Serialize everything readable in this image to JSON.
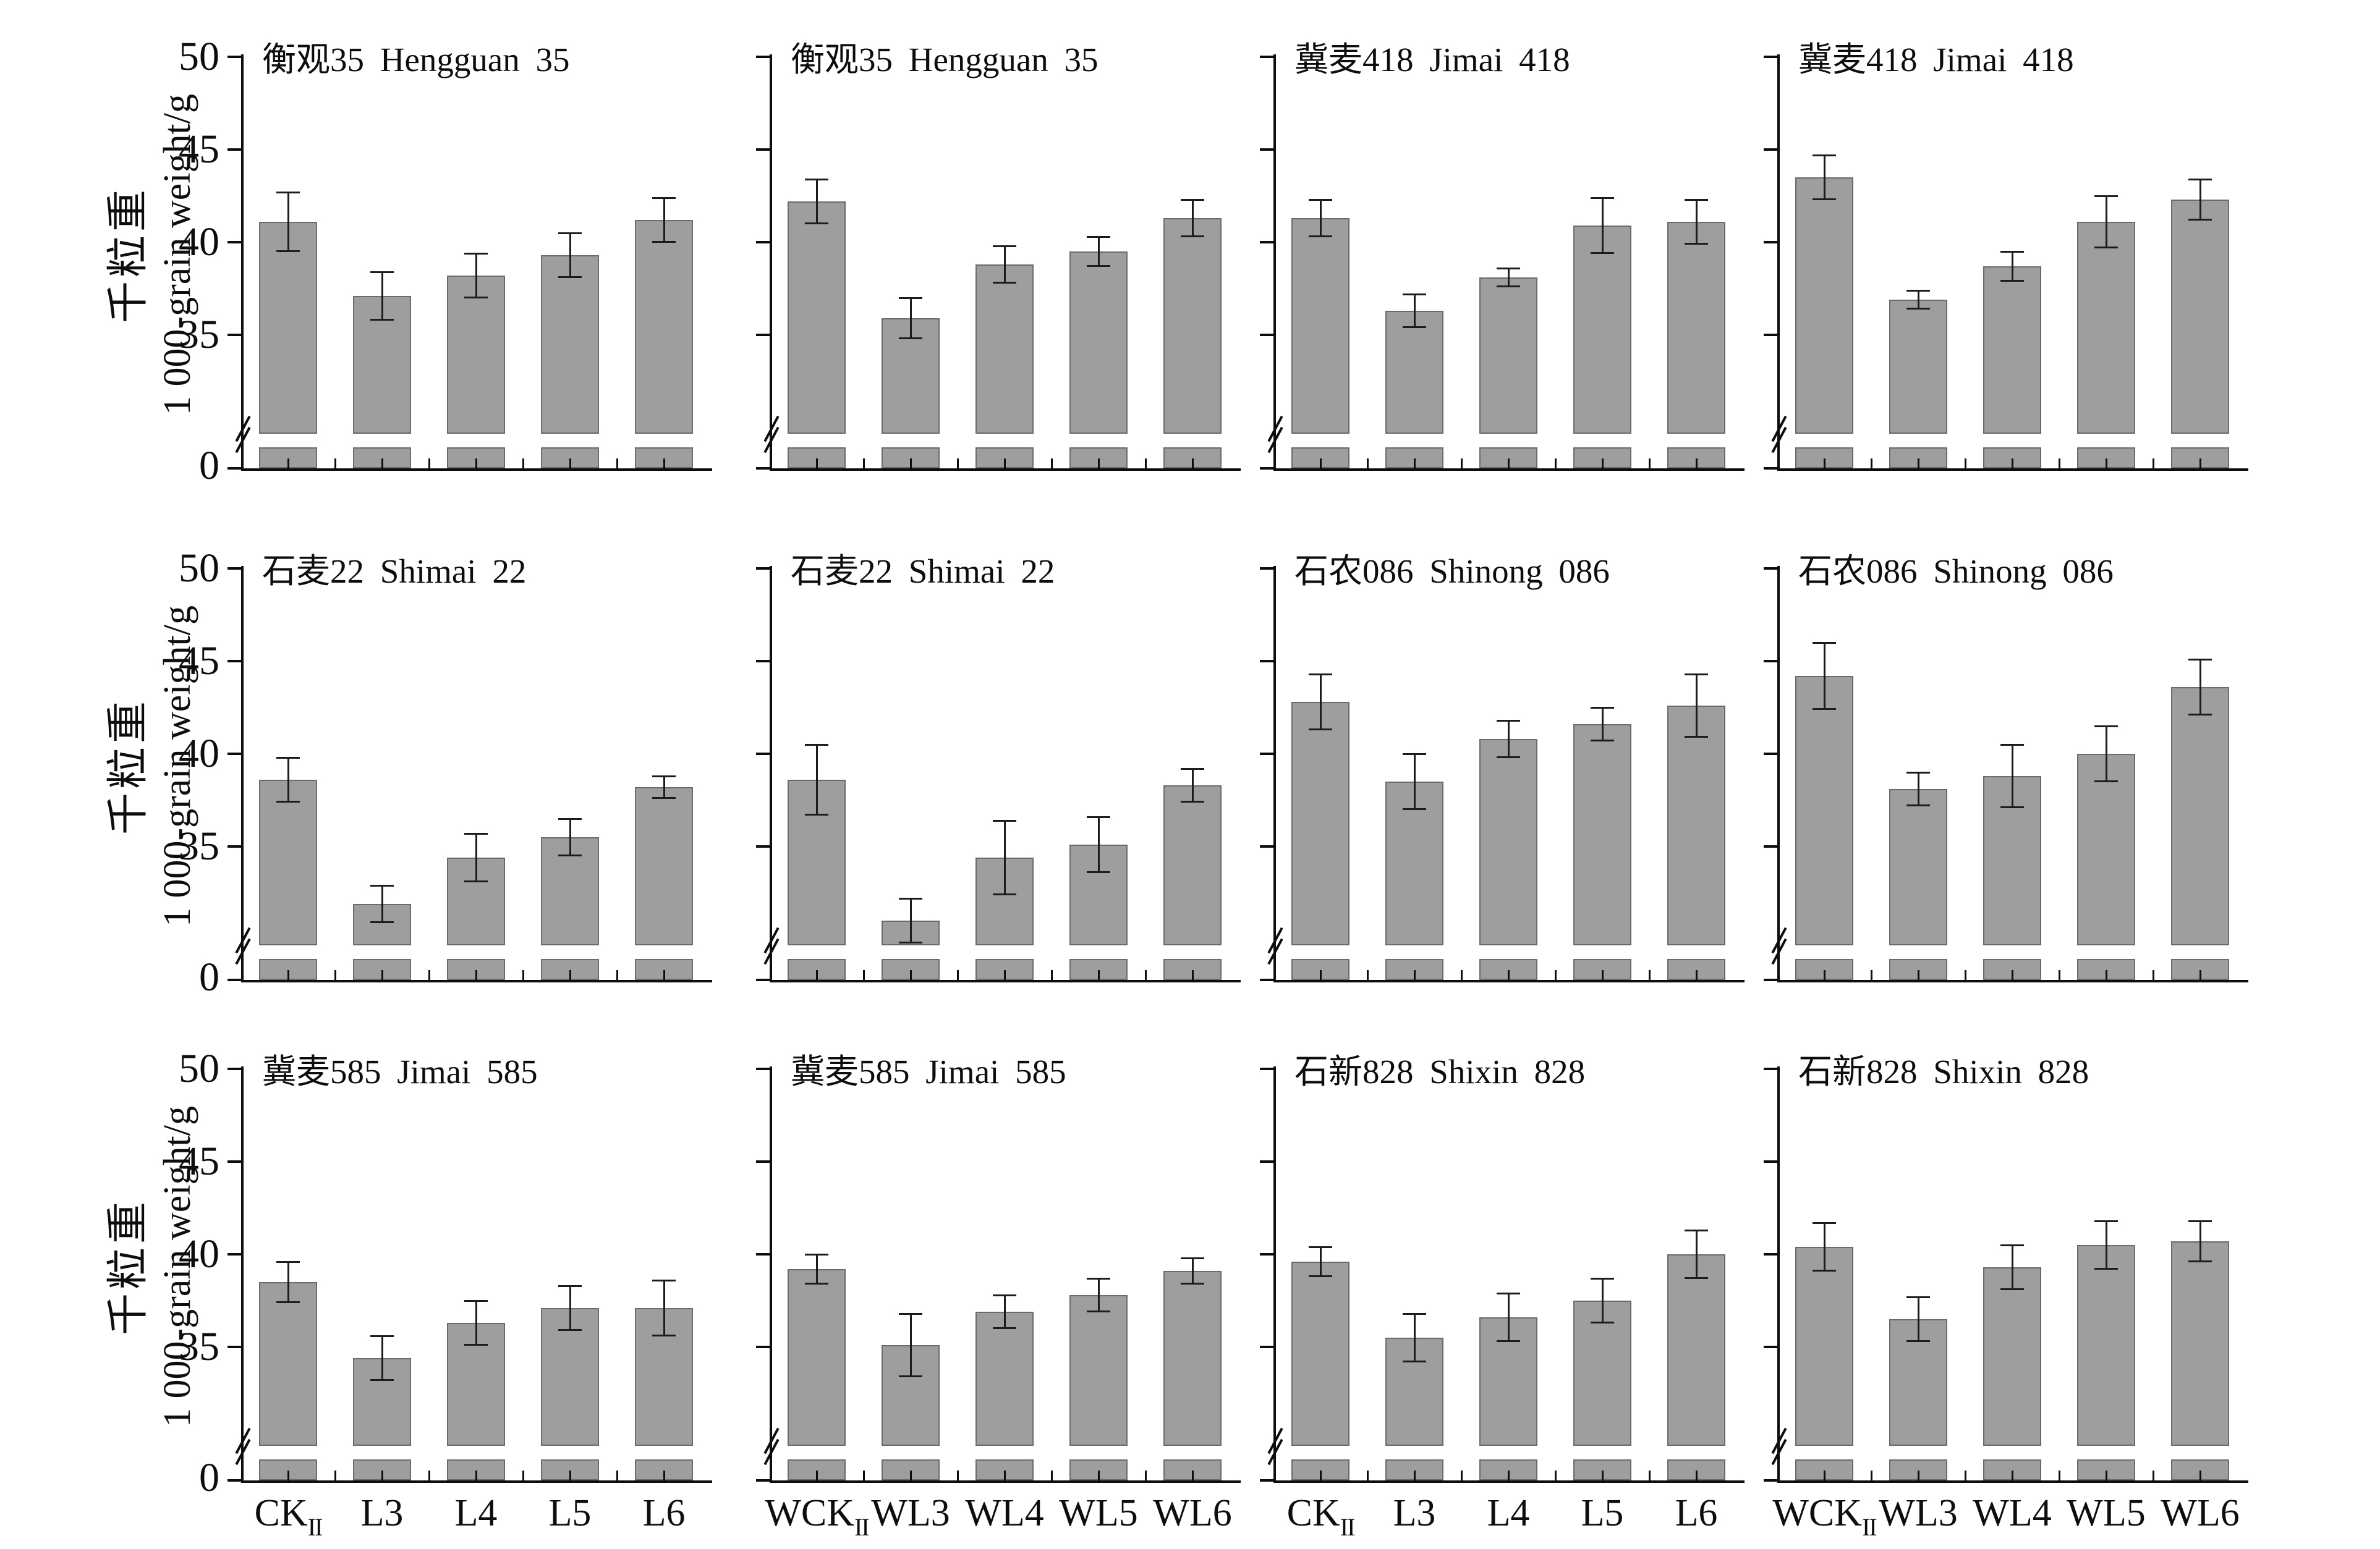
{
  "figure": {
    "background": "#ffffff",
    "axis_color": "#0d0d0d",
    "y_axis_title_cn": "千粒重",
    "y_axis_title_en": "1 000-grain weight/g"
  },
  "chart_data": {
    "type": "bar",
    "title": "",
    "ylabel_cn": "千粒重",
    "ylabel_en": "1 000-grain weight/g",
    "yticks": [
      0,
      35,
      40,
      45,
      50
    ],
    "ylim": [
      0,
      50
    ],
    "grid": false,
    "legend": "none",
    "axis_break": {
      "between": [
        0,
        35
      ],
      "note": "y-axis broken between 0 and 35; each bar shows a white gap band near the baseline with a short stub on the axis"
    },
    "bar_fill": "#9e9e9e",
    "bar_edge": "#6b6b6b",
    "error_bar_color": "#1c1c1c",
    "categories": {
      "control": [
        {
          "base": "CK",
          "sub": "II"
        },
        {
          "base": "L3",
          "sub": ""
        },
        {
          "base": "L4",
          "sub": ""
        },
        {
          "base": "L5",
          "sub": ""
        },
        {
          "base": "L6",
          "sub": ""
        }
      ],
      "warmed": [
        {
          "base": "WCK",
          "sub": "II"
        },
        {
          "base": "WL3",
          "sub": ""
        },
        {
          "base": "WL4",
          "sub": ""
        },
        {
          "base": "WL5",
          "sub": ""
        },
        {
          "base": "WL6",
          "sub": ""
        }
      ]
    },
    "panels": [
      {
        "row": 0,
        "col": 0,
        "title_cn": "衡观35",
        "title_en": "Hengguan 35",
        "category_set": "control",
        "values": [
          41.1,
          37.1,
          38.2,
          39.3,
          41.2
        ],
        "errors": [
          1.6,
          1.3,
          1.2,
          1.2,
          1.2
        ]
      },
      {
        "row": 0,
        "col": 1,
        "title_cn": "衡观35",
        "title_en": "Hengguan 35",
        "category_set": "warmed",
        "values": [
          42.2,
          35.9,
          38.8,
          39.5,
          41.3
        ],
        "errors": [
          1.2,
          1.1,
          1.0,
          0.8,
          1.0
        ]
      },
      {
        "row": 0,
        "col": 2,
        "title_cn": "冀麦418",
        "title_en": "Jimai 418",
        "category_set": "control",
        "values": [
          41.3,
          36.3,
          38.1,
          40.9,
          41.1
        ],
        "errors": [
          1.0,
          0.9,
          0.5,
          1.5,
          1.2
        ]
      },
      {
        "row": 0,
        "col": 3,
        "title_cn": "冀麦418",
        "title_en": "Jimai 418",
        "category_set": "warmed",
        "values": [
          43.5,
          36.9,
          38.7,
          41.1,
          42.3
        ],
        "errors": [
          1.2,
          0.5,
          0.8,
          1.4,
          1.1
        ]
      },
      {
        "row": 1,
        "col": 0,
        "title_cn": "石麦22",
        "title_en": "Shimai 22",
        "category_set": "control",
        "values": [
          38.6,
          31.9,
          34.4,
          35.5,
          38.2
        ],
        "errors": [
          1.2,
          1.0,
          1.3,
          1.0,
          0.6
        ]
      },
      {
        "row": 1,
        "col": 1,
        "title_cn": "石麦22",
        "title_en": "Shimai 22",
        "category_set": "warmed",
        "values": [
          38.6,
          31.0,
          34.4,
          35.1,
          38.3
        ],
        "errors": [
          1.9,
          1.2,
          2.0,
          1.5,
          0.9
        ]
      },
      {
        "row": 1,
        "col": 2,
        "title_cn": "石农086",
        "title_en": "Shinong 086",
        "category_set": "control",
        "values": [
          42.8,
          38.5,
          40.8,
          41.6,
          42.6
        ],
        "errors": [
          1.5,
          1.5,
          1.0,
          0.9,
          1.7
        ]
      },
      {
        "row": 1,
        "col": 3,
        "title_cn": "石农086",
        "title_en": "Shinong 086",
        "category_set": "warmed",
        "values": [
          44.2,
          38.1,
          38.8,
          40.0,
          43.6
        ],
        "errors": [
          1.8,
          0.9,
          1.7,
          1.5,
          1.5
        ]
      },
      {
        "row": 2,
        "col": 0,
        "title_cn": "冀麦585",
        "title_en": "Jimai 585",
        "category_set": "control",
        "values": [
          38.5,
          34.4,
          36.3,
          37.1,
          37.1
        ],
        "errors": [
          1.1,
          1.2,
          1.2,
          1.2,
          1.5
        ]
      },
      {
        "row": 2,
        "col": 1,
        "title_cn": "冀麦585",
        "title_en": "Jimai 585",
        "category_set": "warmed",
        "values": [
          39.2,
          35.1,
          36.9,
          37.8,
          39.1
        ],
        "errors": [
          0.8,
          1.7,
          0.9,
          0.9,
          0.7
        ]
      },
      {
        "row": 2,
        "col": 2,
        "title_cn": "石新828",
        "title_en": "Shixin 828",
        "category_set": "control",
        "values": [
          39.6,
          35.5,
          36.6,
          37.5,
          40.0
        ],
        "errors": [
          0.8,
          1.3,
          1.3,
          1.2,
          1.3
        ]
      },
      {
        "row": 2,
        "col": 3,
        "title_cn": "石新828",
        "title_en": "Shixin 828",
        "category_set": "warmed",
        "values": [
          40.4,
          36.5,
          39.3,
          40.5,
          40.7
        ],
        "errors": [
          1.3,
          1.2,
          1.2,
          1.3,
          1.1
        ]
      }
    ]
  }
}
